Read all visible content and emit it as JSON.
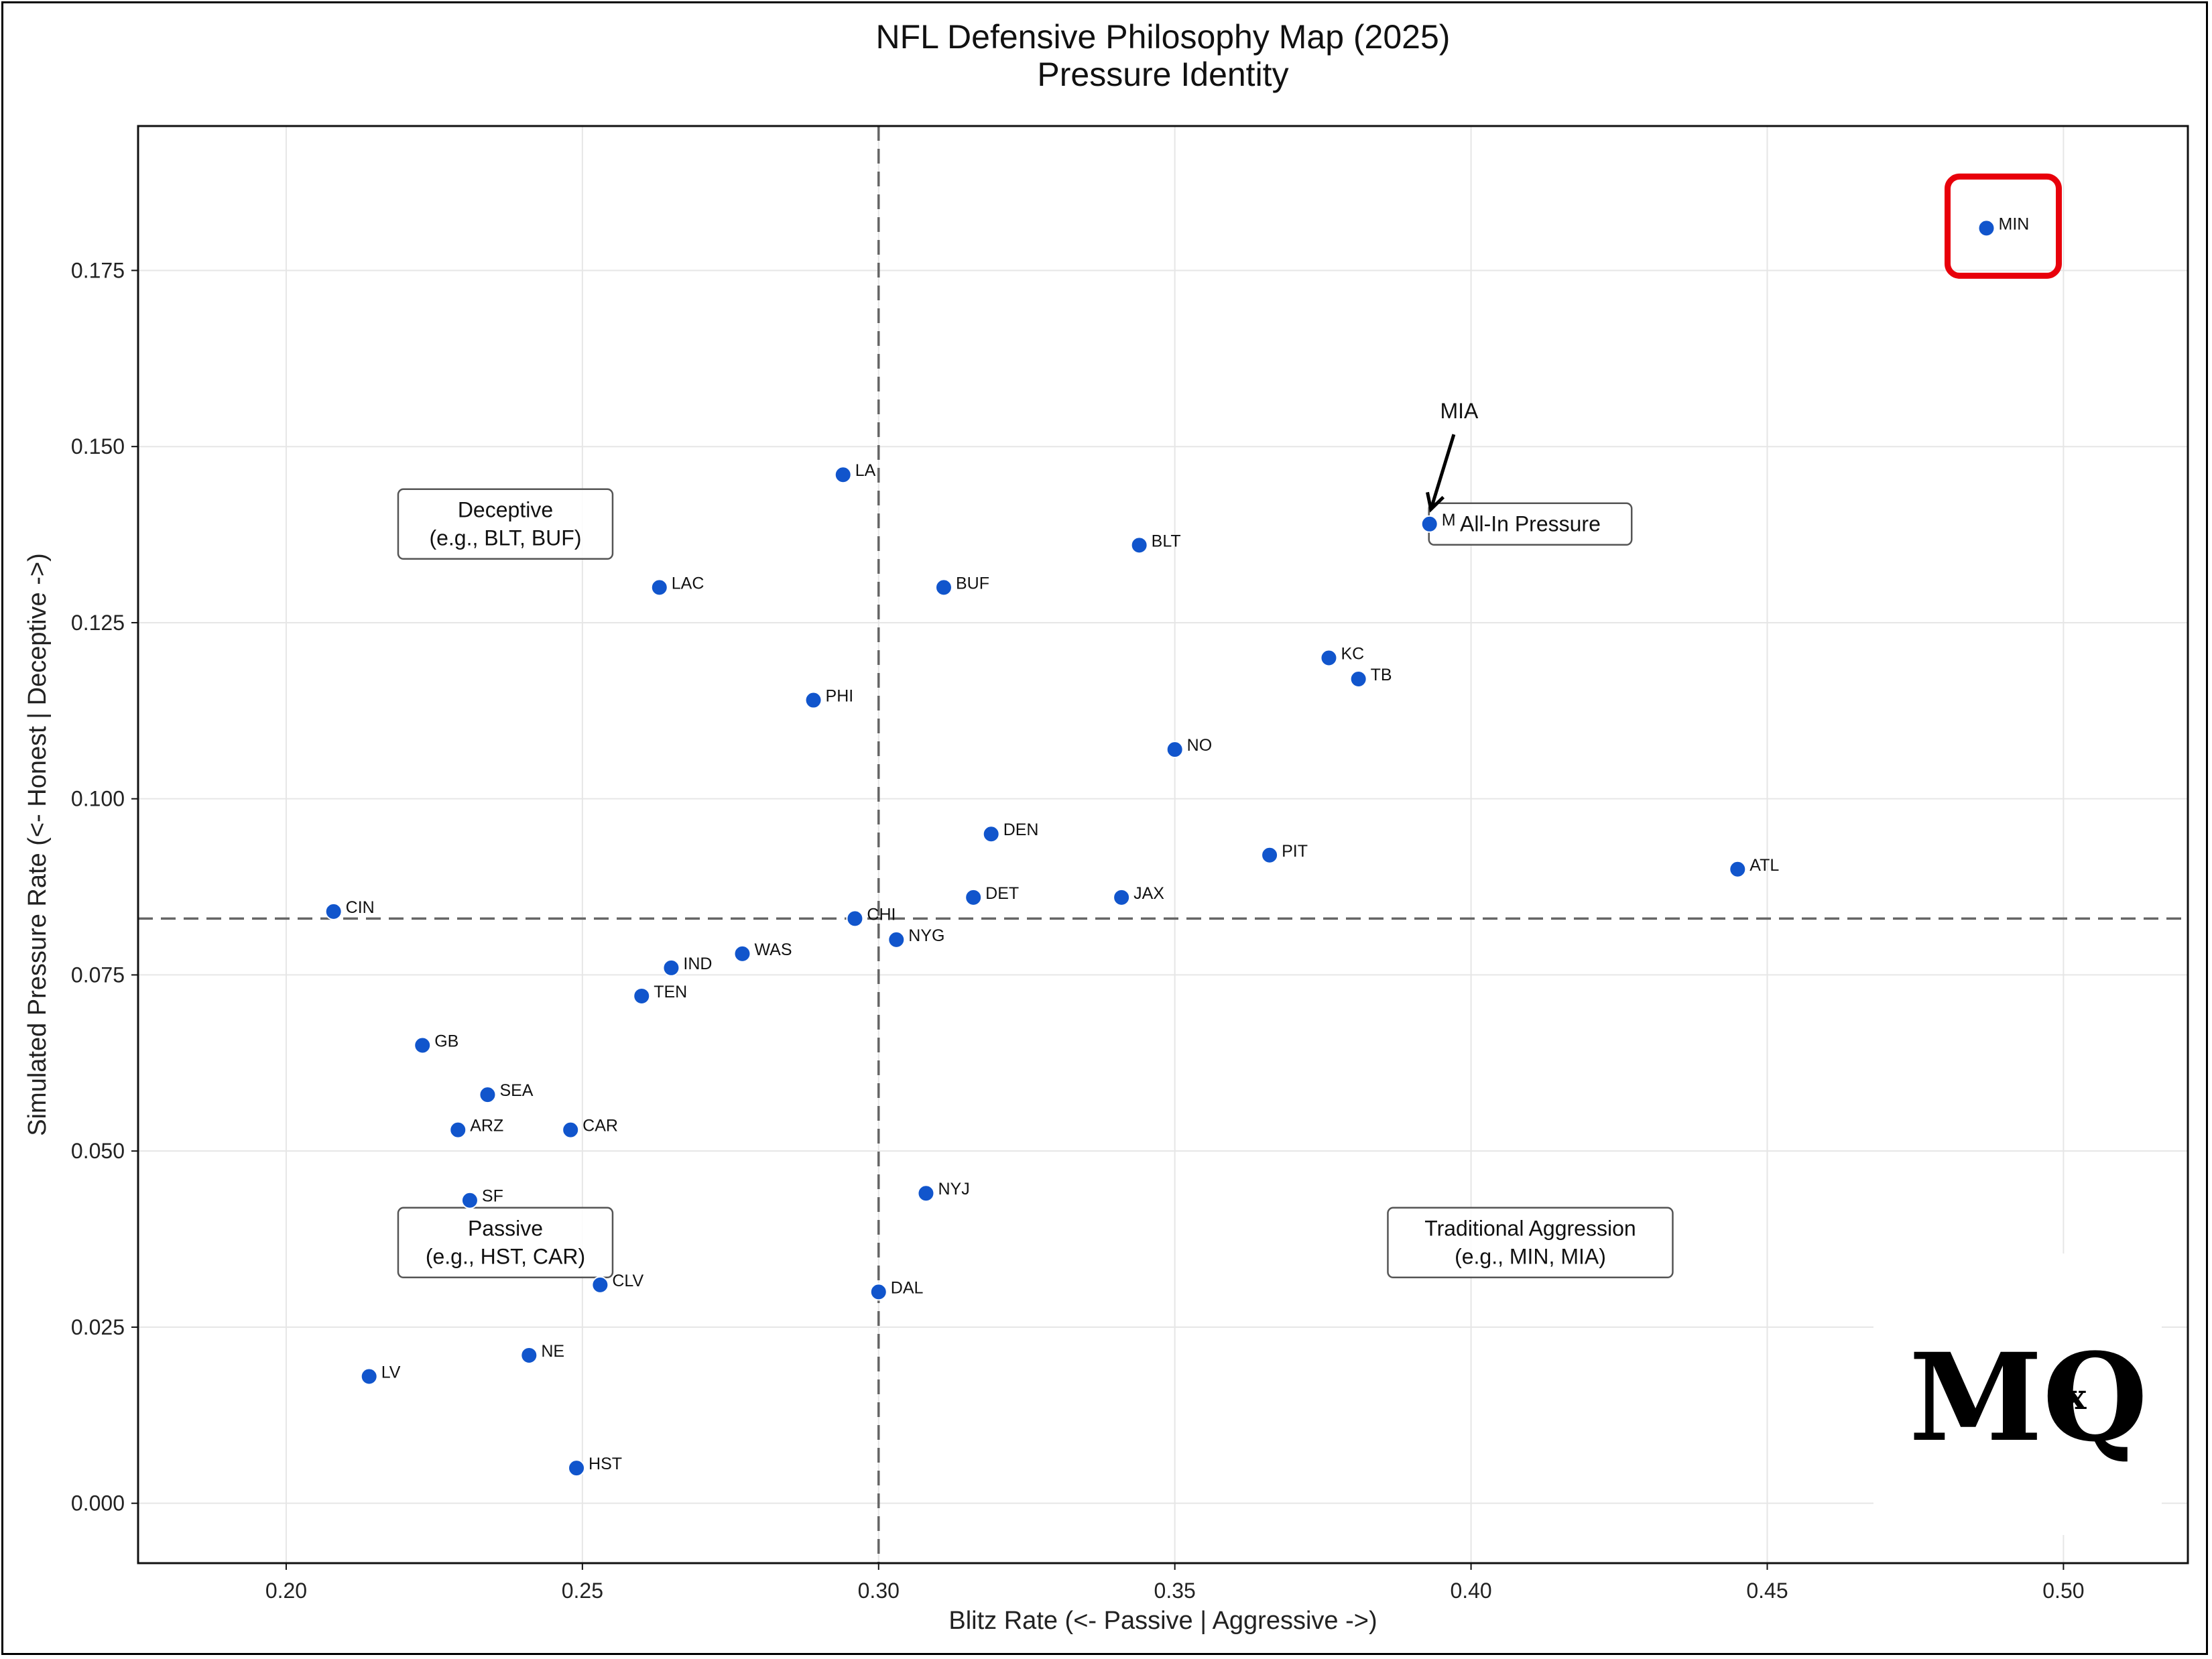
{
  "chart_data": {
    "type": "scatter",
    "title": "NFL Defensive Philosophy Map (2025)",
    "subtitle": "Pressure Identity",
    "xlabel": "Blitz Rate (<- Passive | Aggressive ->)",
    "ylabel": "Simulated Pressure Rate (<- Honest | Deceptive ->)",
    "xlim": [
      0.175,
      0.521
    ],
    "ylim": [
      -0.0085,
      0.1955
    ],
    "xticks": [
      0.2,
      0.25,
      0.3,
      0.35,
      0.4,
      0.45,
      0.5
    ],
    "xtick_labels": [
      "0.20",
      "0.25",
      "0.30",
      "0.35",
      "0.40",
      "0.45",
      "0.50"
    ],
    "yticks": [
      0.0,
      0.025,
      0.05,
      0.075,
      0.1,
      0.125,
      0.15,
      0.175
    ],
    "ytick_labels": [
      "0.000",
      "0.025",
      "0.050",
      "0.075",
      "0.100",
      "0.125",
      "0.150",
      "0.175"
    ],
    "grid": true,
    "reference_lines": {
      "x": 0.3,
      "y": 0.083
    },
    "point_color": "#1155cc",
    "points": [
      {
        "team": "MIN",
        "x": 0.487,
        "y": 0.181,
        "highlight": true
      },
      {
        "team": "MIA",
        "x": 0.393,
        "y": 0.139,
        "label": "M"
      },
      {
        "team": "LA",
        "x": 0.294,
        "y": 0.146
      },
      {
        "team": "BLT",
        "x": 0.344,
        "y": 0.136
      },
      {
        "team": "LAC",
        "x": 0.263,
        "y": 0.13
      },
      {
        "team": "BUF",
        "x": 0.311,
        "y": 0.13
      },
      {
        "team": "KC",
        "x": 0.376,
        "y": 0.12
      },
      {
        "team": "TB",
        "x": 0.381,
        "y": 0.117
      },
      {
        "team": "PHI",
        "x": 0.289,
        "y": 0.114
      },
      {
        "team": "NO",
        "x": 0.35,
        "y": 0.107
      },
      {
        "team": "DEN",
        "x": 0.319,
        "y": 0.095
      },
      {
        "team": "PIT",
        "x": 0.366,
        "y": 0.092
      },
      {
        "team": "ATL",
        "x": 0.445,
        "y": 0.09
      },
      {
        "team": "DET",
        "x": 0.316,
        "y": 0.086
      },
      {
        "team": "JAX",
        "x": 0.341,
        "y": 0.086
      },
      {
        "team": "CIN",
        "x": 0.208,
        "y": 0.084
      },
      {
        "team": "CHI",
        "x": 0.296,
        "y": 0.083
      },
      {
        "team": "NYG",
        "x": 0.303,
        "y": 0.08
      },
      {
        "team": "WAS",
        "x": 0.277,
        "y": 0.078
      },
      {
        "team": "IND",
        "x": 0.265,
        "y": 0.076
      },
      {
        "team": "TEN",
        "x": 0.26,
        "y": 0.072
      },
      {
        "team": "GB",
        "x": 0.223,
        "y": 0.065
      },
      {
        "team": "SEA",
        "x": 0.234,
        "y": 0.058
      },
      {
        "team": "ARZ",
        "x": 0.229,
        "y": 0.053
      },
      {
        "team": "CAR",
        "x": 0.248,
        "y": 0.053
      },
      {
        "team": "NYJ",
        "x": 0.308,
        "y": 0.044
      },
      {
        "team": "SF",
        "x": 0.231,
        "y": 0.043
      },
      {
        "team": "CLV",
        "x": 0.253,
        "y": 0.031
      },
      {
        "team": "DAL",
        "x": 0.3,
        "y": 0.03
      },
      {
        "team": "NE",
        "x": 0.241,
        "y": 0.021
      },
      {
        "team": "LV",
        "x": 0.214,
        "y": 0.018
      },
      {
        "team": "HST",
        "x": 0.249,
        "y": 0.005
      }
    ],
    "annotations": [
      {
        "id": "deceptive",
        "lines": [
          "Deceptive",
          "(e.g., BLT, BUF)"
        ],
        "x": 0.237,
        "y": 0.139
      },
      {
        "id": "all-in",
        "lines": [
          "All-In Pressure"
        ],
        "x": 0.41,
        "y": 0.139
      },
      {
        "id": "passive",
        "lines": [
          "Passive",
          "(e.g., HST, CAR)"
        ],
        "x": 0.237,
        "y": 0.037
      },
      {
        "id": "traditional",
        "lines": [
          "Traditional Aggression",
          "(e.g., MIN, MIA)"
        ],
        "x": 0.41,
        "y": 0.037
      }
    ],
    "arrow_annotation": {
      "text": "MIA",
      "target_team": "MIA",
      "text_x": 0.398,
      "text_y": 0.154
    }
  },
  "logo": {
    "text": "MQ",
    "mark": "x"
  },
  "colors": {
    "highlight": "#e8000b",
    "reference_line": "#666666",
    "grid": "#e6e6e6"
  }
}
